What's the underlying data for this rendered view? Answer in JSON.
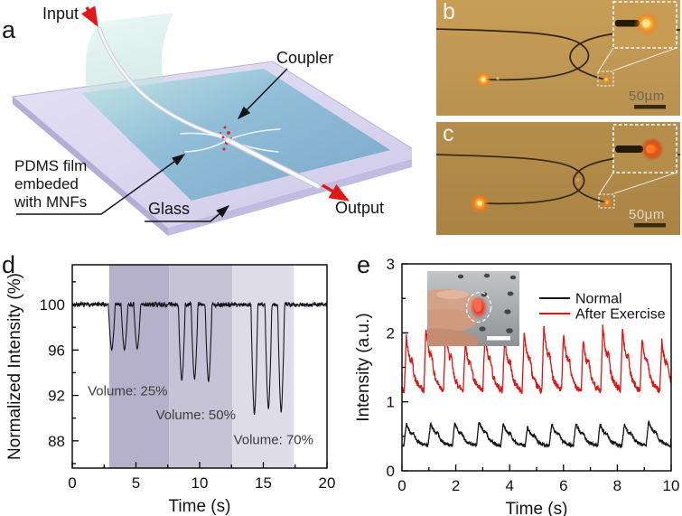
{
  "panels": {
    "a": {
      "label": "a",
      "input": "Input",
      "coupler": "Coupler",
      "pdms_lines": [
        "PDMS film",
        "embeded",
        "with MNFs"
      ],
      "glass": "Glass",
      "output": "Output"
    },
    "b": {
      "label": "b",
      "scale_bar": "50μm"
    },
    "c": {
      "label": "c",
      "scale_bar": "50μm"
    },
    "d": {
      "label": "d"
    },
    "e": {
      "label": "e"
    }
  },
  "colors": {
    "micrograph_b_bg": "#c59a52",
    "micrograph_c_bg": "#b28a48",
    "glow_orange": "#ff9b2e",
    "trace_black": "#141414",
    "trace_red": "#e01414",
    "band_25": "#b5b1cb",
    "band_50": "#c6c3d7",
    "band_70": "#dedce9"
  },
  "chart_data": [
    {
      "id": "panel_d",
      "type": "line",
      "title": "",
      "xlabel": "Time (s)",
      "ylabel": "Normalized Intensity (%)",
      "xlim": [
        0,
        20
      ],
      "ylim": [
        85.6,
        103.5
      ],
      "xticks": [
        0,
        5,
        10,
        15,
        20
      ],
      "yticks": [
        88,
        92,
        96,
        100
      ],
      "grid": false,
      "line_color": "#17171f",
      "baseline_value": 100,
      "noise_amplitude": 0.26,
      "dip_half_width_s": 0.27,
      "dips": [
        {
          "t": 3.1,
          "min": 96.0
        },
        {
          "t": 4.1,
          "min": 96.0
        },
        {
          "t": 5.1,
          "min": 96.1
        },
        {
          "t": 8.6,
          "min": 93.3
        },
        {
          "t": 9.6,
          "min": 93.4
        },
        {
          "t": 10.7,
          "min": 93.2
        },
        {
          "t": 14.3,
          "min": 90.3
        },
        {
          "t": 15.4,
          "min": 90.8
        },
        {
          "t": 16.4,
          "min": 90.5
        }
      ],
      "regions": [
        {
          "label": "Volume: 25%",
          "t0": 2.9,
          "t1": 7.6,
          "color": "#b5b1cb",
          "label_at": [
            4.35,
            92.4
          ]
        },
        {
          "label": "Volume: 50%",
          "t0": 7.6,
          "t1": 12.55,
          "color": "#c6c3d7",
          "label_at": [
            9.7,
            90.3
          ]
        },
        {
          "label": "Volume: 70%",
          "t0": 12.55,
          "t1": 17.4,
          "color": "#dedce9",
          "label_at": [
            15.8,
            88.1
          ]
        }
      ]
    },
    {
      "id": "panel_e",
      "type": "line",
      "title": "",
      "xlabel": "Time (s)",
      "ylabel": "Intensity (a.u.)",
      "xlim": [
        0,
        10
      ],
      "ylim": [
        0,
        3
      ],
      "xticks": [
        0,
        2,
        4,
        6,
        8,
        10
      ],
      "yticks": [
        0,
        1,
        2,
        3
      ],
      "grid": false,
      "legend_position": "top-right",
      "series": [
        {
          "name": "Normal",
          "color": "#141414",
          "baseline": 0.34,
          "peak": 0.68,
          "period_s": 0.9,
          "phase": 0.92,
          "noise": 0.022
        },
        {
          "name": "After Exercise",
          "color": "#e01414",
          "baseline": 1.1,
          "peak": 1.97,
          "period_s": 0.73,
          "phase": 0.88,
          "noise": 0.05
        }
      ]
    }
  ]
}
